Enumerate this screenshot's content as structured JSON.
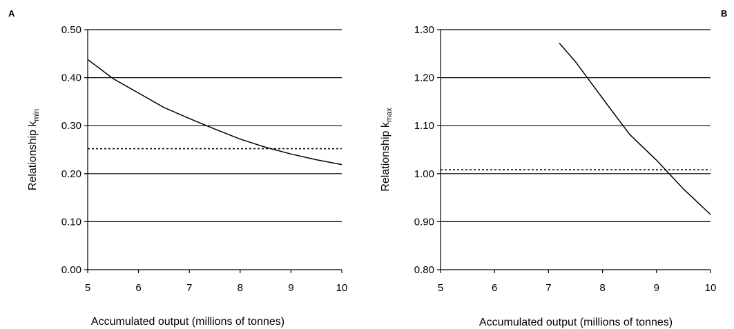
{
  "chart_data": [
    {
      "type": "line",
      "panel_label": "A",
      "xlabel": "Accumulated output (millions of tonnes)",
      "ylabel_main": "Relationship k",
      "ylabel_sub": "min",
      "xlim": [
        5,
        10
      ],
      "ylim": [
        0.0,
        0.5
      ],
      "x_ticks": [
        "5",
        "6",
        "7",
        "8",
        "9",
        "10"
      ],
      "y_ticks": [
        "0.00",
        "0.10",
        "0.20",
        "0.30",
        "0.40",
        "0.50"
      ],
      "grid": "horizontal",
      "series": [
        {
          "style": "solid",
          "x": [
            5.0,
            5.5,
            6.0,
            6.5,
            7.0,
            7.5,
            8.0,
            8.5,
            9.0,
            9.5,
            10.0
          ],
          "y": [
            0.438,
            0.398,
            0.368,
            0.338,
            0.315,
            0.293,
            0.272,
            0.255,
            0.241,
            0.229,
            0.219
          ]
        },
        {
          "style": "dotted",
          "x": [
            5.0,
            10.0
          ],
          "y": [
            0.252,
            0.252
          ]
        }
      ]
    },
    {
      "type": "line",
      "panel_label": "B",
      "xlabel": "Accumulated output (millions of tonnes)",
      "ylabel_main": "Relationship k",
      "ylabel_sub": "max",
      "xlim": [
        5,
        10
      ],
      "ylim": [
        0.8,
        1.3
      ],
      "x_ticks": [
        "5",
        "6",
        "7",
        "8",
        "9",
        "10"
      ],
      "y_ticks": [
        "0.80",
        "0.90",
        "1.00",
        "1.10",
        "1.20",
        "1.30"
      ],
      "grid": "horizontal",
      "series": [
        {
          "style": "solid",
          "x": [
            7.2,
            7.5,
            8.0,
            8.5,
            9.0,
            9.5,
            10.0
          ],
          "y": [
            1.272,
            1.233,
            1.157,
            1.082,
            1.028,
            0.968,
            0.915
          ]
        },
        {
          "style": "dotted",
          "x": [
            5.0,
            10.0
          ],
          "y": [
            1.008,
            1.008
          ]
        }
      ]
    }
  ]
}
